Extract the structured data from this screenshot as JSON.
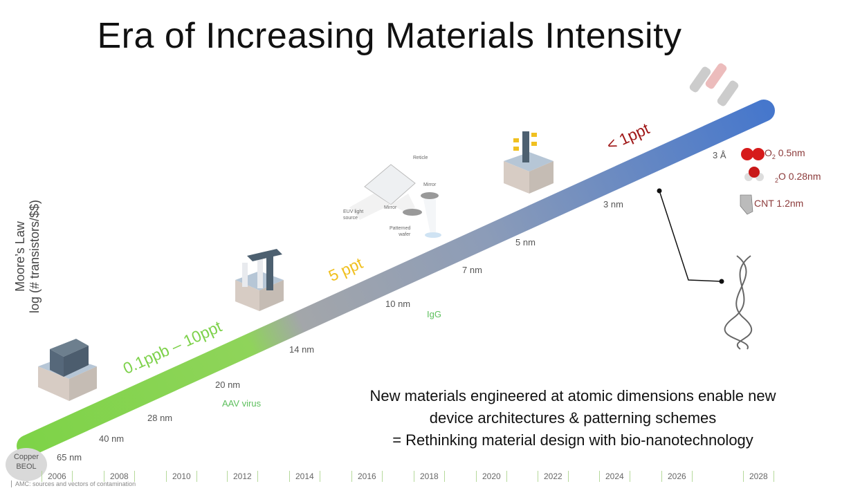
{
  "title": "Era of Increasing Materials Intensity",
  "y_axis": {
    "line1": "Moore’s Law",
    "line2": "log (# transistors/$$)"
  },
  "contamination_levels": [
    {
      "label": "0.1ppb – 10ppt",
      "color": "#7dd14a"
    },
    {
      "label": "5 ppt",
      "color": "#f0c020"
    },
    {
      "label": "< 1ppt",
      "color": "#a01818"
    }
  ],
  "nodes": [
    "65 nm",
    "40 nm",
    "28 nm",
    "20 nm",
    "14 nm",
    "10 nm",
    "7 nm",
    "5 nm",
    "3 nm",
    "3 Å"
  ],
  "bio_labels": {
    "aav": "AAV virus",
    "igg": "IgG"
  },
  "molecules": {
    "o2": "O",
    "o2_sub": "2",
    "o2_size": " 0.5nm",
    "h2o_sub": "2",
    "h2o": "O 0.28nm",
    "cnt": "CNT 1.2nm"
  },
  "euv": {
    "reticle": "Reticle",
    "mirror1": "Mirror",
    "mirror2": "Mirror",
    "source1": "EUV light",
    "source2": "source",
    "wafer1": "Patterned",
    "wafer2": "wafer"
  },
  "copper": {
    "line1": "Copper",
    "line2": "BEOL"
  },
  "statement": [
    "New materials engineered at atomic dimensions enable new",
    "device architectures & patterning schemes",
    "= Rethinking material design with bio-nanotechnology"
  ],
  "years": [
    "2006",
    "2008",
    "2010",
    "2012",
    "2014",
    "2016",
    "2018",
    "2020",
    "2022",
    "2024",
    "2026",
    "2028"
  ],
  "footnote": "AMC: sources and vectors of contamination",
  "colors": {
    "green": "#7ed348",
    "gray": "#a3a6aa",
    "blue": "#4677cc",
    "molecule_text": "#8b3a3a"
  }
}
